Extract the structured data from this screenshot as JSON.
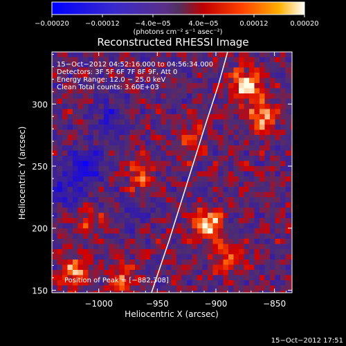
{
  "chart_data": {
    "type": "heatmap",
    "title": "Reconstructed RHESSI Image",
    "xlabel": "Heliocentric X (arcsec)",
    "ylabel": "Heliocentric Y (arcsec)",
    "xlim": [
      -1040,
      -835
    ],
    "ylim": [
      148,
      342
    ],
    "xticks": [
      -1000,
      -950,
      -900,
      -850
    ],
    "xtick_labels": [
      "−1000",
      "−950",
      "−900",
      "−850"
    ],
    "yticks": [
      150,
      200,
      250,
      300
    ],
    "ytick_labels": [
      "150",
      "200",
      "250",
      "300"
    ],
    "colorbar": {
      "range": [
        -0.0002,
        0.0002
      ],
      "ticks": [
        -0.0002,
        -0.00012,
        -4e-05,
        4e-05,
        0.00012,
        0.0002
      ],
      "tick_labels": [
        "−0.00020",
        "−0.00012",
        "−4.0e−05",
        "4.0e−05",
        "0.00012",
        "0.00020"
      ],
      "unit_label": "(photons cm⁻² s⁻¹ asec⁻²)"
    },
    "annotations": [
      "15−Oct−2012 04:52:16.000 to 04:56:34.000",
      "Detectors: 3F 5F 6F 7F 8F 9F, Att 0",
      "Energy Range: 12.0 − 25.0 keV",
      "Clean     Total counts: 3.60E+03"
    ],
    "peak_label": "Position of Peak = [−882,308]",
    "peak_position": [
      -882,
      308
    ],
    "limb_curve": [
      [
        -955,
        148
      ],
      [
        -940,
        190
      ],
      [
        -925,
        235
      ],
      [
        -910,
        280
      ],
      [
        -898,
        315
      ],
      [
        -890,
        342
      ]
    ],
    "sources": [
      {
        "x": -875,
        "y": 315,
        "strength": 1.0
      },
      {
        "x": -860,
        "y": 290,
        "strength": 0.8
      },
      {
        "x": -908,
        "y": 203,
        "strength": 0.95
      },
      {
        "x": -890,
        "y": 175,
        "strength": 0.6
      },
      {
        "x": -1020,
        "y": 165,
        "strength": 0.7
      },
      {
        "x": -980,
        "y": 160,
        "strength": 0.6
      },
      {
        "x": -965,
        "y": 240,
        "strength": 0.5
      },
      {
        "x": -920,
        "y": 270,
        "strength": 0.45
      },
      {
        "x": -1010,
        "y": 205,
        "strength": 0.35
      }
    ],
    "sinks": [
      {
        "x": -1010,
        "y": 250,
        "strength": 1.0
      },
      {
        "x": -990,
        "y": 290,
        "strength": 0.6
      },
      {
        "x": -1030,
        "y": 230,
        "strength": 0.7
      },
      {
        "x": -970,
        "y": 215,
        "strength": 0.4
      }
    ]
  },
  "footer_timestamp": "15−Oct−2012 17:51"
}
